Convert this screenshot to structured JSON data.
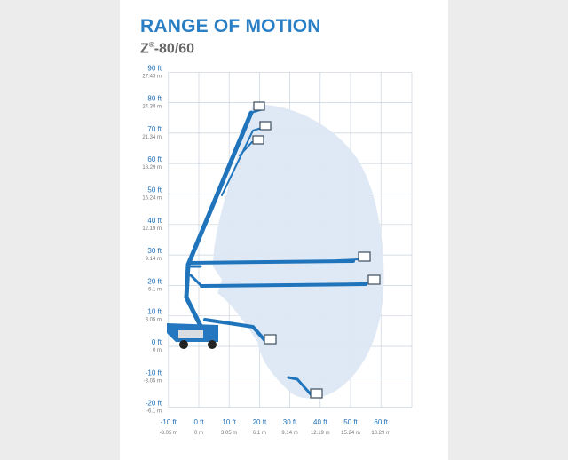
{
  "title": "RANGE OF MOTION",
  "subtitle_main": "Z",
  "subtitle_sup": "®",
  "subtitle_rest": "-80/60",
  "colors": {
    "title": "#2a7fc4",
    "boom": "#1f74bb",
    "envelope": "#dde8f4",
    "grid": "#c9d3de"
  },
  "y_ticks": [
    {
      "ft": "90 ft",
      "m": "27.43 m",
      "v": 90
    },
    {
      "ft": "80 ft",
      "m": "24.38 m",
      "v": 80
    },
    {
      "ft": "70 ft",
      "m": "21.34 m",
      "v": 70
    },
    {
      "ft": "60 ft",
      "m": "18.29 m",
      "v": 60
    },
    {
      "ft": "50 ft",
      "m": "15.24 m",
      "v": 50
    },
    {
      "ft": "40 ft",
      "m": "12.19 m",
      "v": 40
    },
    {
      "ft": "30 ft",
      "m": "9.14 m",
      "v": 30
    },
    {
      "ft": "20 ft",
      "m": "6.1 m",
      "v": 20
    },
    {
      "ft": "10 ft",
      "m": "3.05 m",
      "v": 10
    },
    {
      "ft": "0 ft",
      "m": "0 m",
      "v": 0
    },
    {
      "ft": "-10 ft",
      "m": "-3.05 m",
      "v": -10
    },
    {
      "ft": "-20 ft",
      "m": "-6.1 m",
      "v": -20
    }
  ],
  "x_ticks": [
    {
      "ft": "-10 ft",
      "m": "-3.05 m",
      "v": -10
    },
    {
      "ft": "0 ft",
      "m": "0 m",
      "v": 0
    },
    {
      "ft": "10 ft",
      "m": "3.05 m",
      "v": 10
    },
    {
      "ft": "20 ft",
      "m": "6.1 m",
      "v": 20
    },
    {
      "ft": "30 ft",
      "m": "9.14 m",
      "v": 30
    },
    {
      "ft": "40 ft",
      "m": "12.19 m",
      "v": 40
    },
    {
      "ft": "50 ft",
      "m": "15.24 m",
      "v": 50
    },
    {
      "ft": "60 ft",
      "m": "18.29 m",
      "v": 60
    }
  ]
}
